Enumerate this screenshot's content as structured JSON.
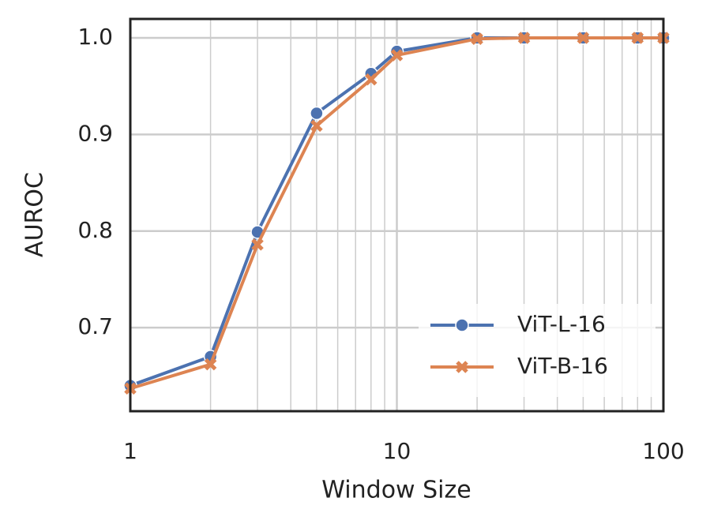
{
  "chart_data": {
    "type": "line",
    "xlabel": "Window Size",
    "ylabel": "AUROC",
    "x": [
      1,
      2,
      3,
      5,
      8,
      10,
      20,
      30,
      50,
      80,
      100
    ],
    "series": [
      {
        "name": "ViT-L-16",
        "color": "#4c72b0",
        "marker": "circle",
        "values": [
          0.64,
          0.67,
          0.799,
          0.922,
          0.963,
          0.986,
          1.0,
          1.0,
          1.0,
          1.0,
          1.0
        ]
      },
      {
        "name": "ViT-B-16",
        "color": "#dd8452",
        "marker": "x",
        "values": [
          0.637,
          0.662,
          0.786,
          0.909,
          0.957,
          0.982,
          0.999,
          1.0,
          1.0,
          1.0,
          1.0
        ]
      }
    ],
    "xscale": "log",
    "xlim": [
      1,
      100
    ],
    "xticks": [
      1,
      10,
      100
    ],
    "xminorticks": [
      2,
      3,
      4,
      5,
      6,
      7,
      8,
      9,
      20,
      30,
      40,
      50,
      60,
      70,
      80,
      90
    ],
    "ylim": [
      0.6135,
      1.0196
    ],
    "yticks": [
      0.7,
      0.8,
      0.9,
      {
        "value": 1,
        "label": "1.0"
      }
    ],
    "grid": true,
    "legend": "lower right"
  }
}
